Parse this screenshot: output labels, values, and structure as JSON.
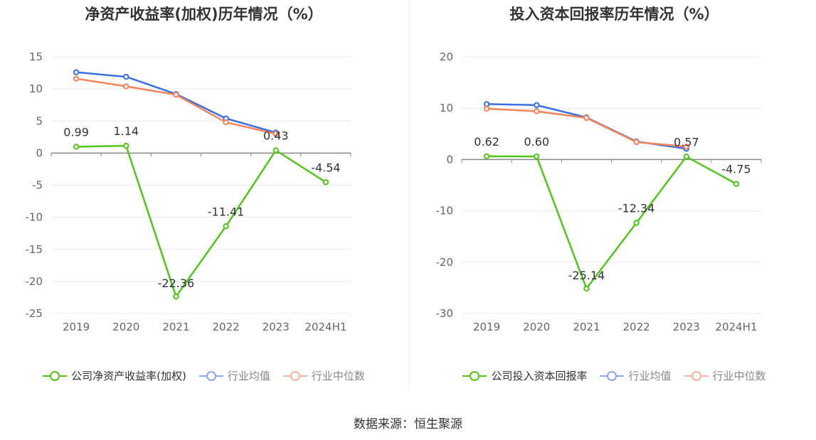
{
  "colors": {
    "company": "#52c41a",
    "industry_avg": "#3b6fe0",
    "industry_median": "#f5845a",
    "industry_avg_legend": "#8fa8ea",
    "industry_median_legend": "#f7b29c",
    "grid": "#e6e9f0",
    "axis": "#666666"
  },
  "footer": {
    "source": "数据来源：恒生聚源"
  },
  "chart_data": [
    {
      "type": "line",
      "title": "净资产收益率(加权)历年情况（%）",
      "categories": [
        "2019",
        "2020",
        "2021",
        "2022",
        "2023",
        "2024H1"
      ],
      "ylim": [
        -25,
        15
      ],
      "yticks": [
        15,
        10,
        5,
        0,
        -5,
        -10,
        -15,
        -20,
        -25
      ],
      "grid": true,
      "legend_position": "bottom",
      "series": [
        {
          "name": "公司净资产收益率(加权)",
          "color_key": "company",
          "values": [
            0.99,
            1.14,
            -22.36,
            -11.41,
            0.43,
            -4.54
          ],
          "labels": [
            "0.99",
            "1.14",
            "-22.36",
            "-11.41",
            "0.43",
            "-4.54"
          ],
          "show_labels": true
        },
        {
          "name": "行业均值",
          "color_key": "industry_avg",
          "values": [
            12.6,
            11.9,
            9.2,
            5.4,
            3.2,
            null
          ],
          "show_labels": false
        },
        {
          "name": "行业中位数",
          "color_key": "industry_median",
          "values": [
            11.6,
            10.4,
            9.1,
            4.8,
            3.0,
            null
          ],
          "show_labels": false
        }
      ]
    },
    {
      "type": "line",
      "title": "投入资本回报率历年情况（%）",
      "categories": [
        "2019",
        "2020",
        "2021",
        "2022",
        "2023",
        "2024H1"
      ],
      "ylim": [
        -30,
        20
      ],
      "yticks": [
        20,
        10,
        0,
        -10,
        -20,
        -30
      ],
      "grid": true,
      "legend_position": "bottom",
      "series": [
        {
          "name": "公司投入资本回报率",
          "color_key": "company",
          "values": [
            0.62,
            0.6,
            -25.14,
            -12.34,
            0.57,
            -4.75
          ],
          "labels": [
            "0.62",
            "0.60",
            "-25.14",
            "-12.34",
            "0.57",
            "-4.75"
          ],
          "show_labels": true
        },
        {
          "name": "行业均值",
          "color_key": "industry_avg",
          "values": [
            10.8,
            10.6,
            8.2,
            3.5,
            2.1,
            null
          ],
          "show_labels": false
        },
        {
          "name": "行业中位数",
          "color_key": "industry_median",
          "values": [
            9.9,
            9.4,
            8.1,
            3.4,
            2.5,
            null
          ],
          "show_labels": false
        }
      ]
    }
  ]
}
